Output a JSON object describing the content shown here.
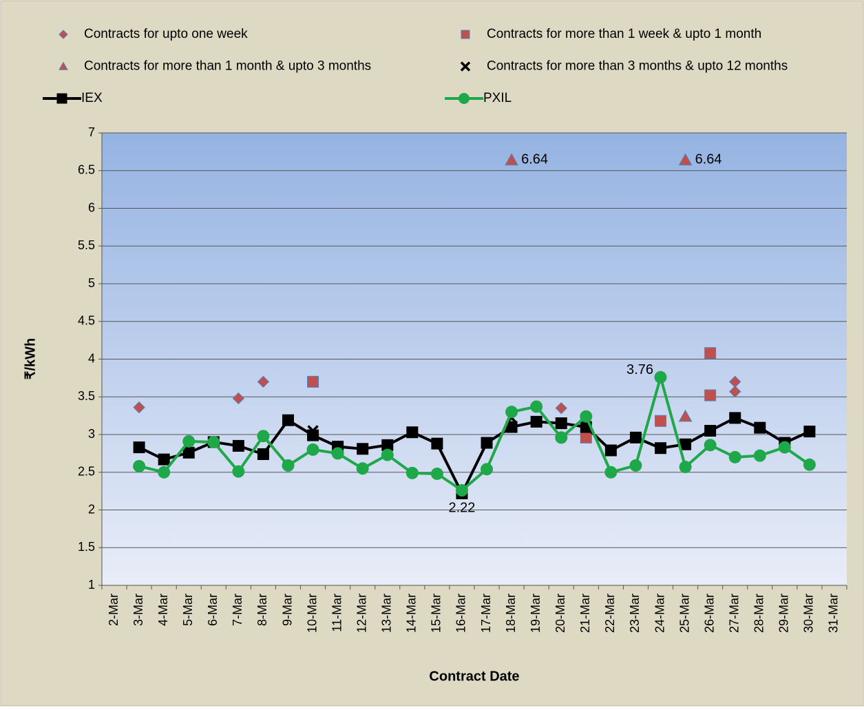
{
  "chart_data": {
    "type": "line",
    "x_label": "Contract Date",
    "y_label": "₹/kWh",
    "categories": [
      "2-Mar",
      "3-Mar",
      "4-Mar",
      "5-Mar",
      "6-Mar",
      "7-Mar",
      "8-Mar",
      "9-Mar",
      "10-Mar",
      "11-Mar",
      "12-Mar",
      "13-Mar",
      "14-Mar",
      "15-Mar",
      "16-Mar",
      "17-Mar",
      "18-Mar",
      "19-Mar",
      "20-Mar",
      "21-Mar",
      "22-Mar",
      "23-Mar",
      "24-Mar",
      "25-Mar",
      "26-Mar",
      "27-Mar",
      "28-Mar",
      "29-Mar",
      "30-Mar",
      "31-Mar"
    ],
    "ylim": [
      1,
      7
    ],
    "yticks": [
      1,
      1.5,
      2,
      2.5,
      3,
      3.5,
      4,
      4.5,
      5,
      5.5,
      6,
      6.5,
      7
    ],
    "grid": true,
    "series": [
      {
        "name": "Contracts for upto one week",
        "type": "scatter",
        "marker": "diamond",
        "color": "#c0504d",
        "x": [
          "3-Mar",
          "7-Mar",
          "8-Mar",
          "20-Mar",
          "27-Mar",
          "27-Mar"
        ],
        "values": [
          3.36,
          3.48,
          3.7,
          3.35,
          3.7,
          3.57
        ]
      },
      {
        "name": "Contracts for more than 1 week & upto 1 month",
        "type": "scatter",
        "marker": "square",
        "color": "#c0504d",
        "x": [
          "10-Mar",
          "21-Mar",
          "24-Mar",
          "26-Mar",
          "26-Mar"
        ],
        "values": [
          3.7,
          2.96,
          3.18,
          4.08,
          3.52
        ]
      },
      {
        "name": "Contracts for more than 1 month & upto 3 months",
        "type": "scatter",
        "marker": "triangle",
        "color": "#c0504d",
        "x": [
          "18-Mar",
          "25-Mar",
          "25-Mar"
        ],
        "values": [
          6.64,
          6.64,
          3.24
        ],
        "value_labels": [
          "6.64",
          "6.64",
          null
        ]
      },
      {
        "name": "Contracts for more than 3 months & upto 12 months",
        "type": "scatter",
        "marker": "cross",
        "color": "#000000",
        "x": [
          "10-Mar",
          "18-Mar"
        ],
        "values": [
          3.05,
          3.22
        ]
      },
      {
        "name": "IEX",
        "type": "line",
        "marker": "square",
        "color": "#000000",
        "values": [
          null,
          2.83,
          2.67,
          2.76,
          2.9,
          2.85,
          2.74,
          3.19,
          2.99,
          2.84,
          2.81,
          2.86,
          3.03,
          2.88,
          2.22,
          2.89,
          3.1,
          3.17,
          3.15,
          3.1,
          2.79,
          2.96,
          2.82,
          2.87,
          3.05,
          3.22,
          3.09,
          2.89,
          3.04,
          null
        ],
        "value_labels": [
          null,
          null,
          null,
          null,
          null,
          null,
          null,
          null,
          null,
          null,
          null,
          null,
          null,
          null,
          "2.22",
          null,
          null,
          null,
          null,
          null,
          null,
          null,
          null,
          null,
          null,
          null,
          null,
          null,
          null,
          null
        ]
      },
      {
        "name": "PXIL",
        "type": "line",
        "marker": "circle",
        "color": "#1fa84a",
        "values": [
          null,
          2.58,
          2.5,
          2.91,
          2.9,
          2.51,
          2.98,
          2.59,
          2.8,
          2.75,
          2.55,
          2.73,
          2.49,
          2.48,
          2.26,
          2.54,
          3.3,
          3.37,
          2.96,
          3.24,
          2.5,
          2.59,
          3.76,
          2.57,
          2.86,
          2.7,
          2.72,
          2.83,
          2.6,
          null
        ],
        "value_labels": [
          null,
          null,
          null,
          null,
          null,
          null,
          null,
          null,
          null,
          null,
          null,
          null,
          null,
          null,
          null,
          null,
          null,
          null,
          null,
          null,
          null,
          null,
          "3.76",
          null,
          null,
          null,
          null,
          null,
          null,
          null
        ]
      }
    ]
  }
}
